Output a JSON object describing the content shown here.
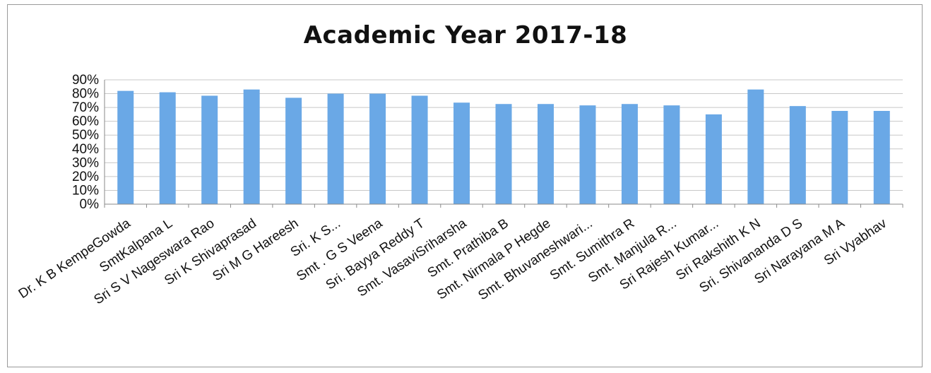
{
  "chart_data": {
    "type": "bar",
    "title": "Academic Year 2017-18",
    "xlabel": "",
    "ylabel": "",
    "ylim": [
      0,
      90
    ],
    "yticks": [
      "0%",
      "10%",
      "20%",
      "30%",
      "40%",
      "50%",
      "60%",
      "70%",
      "80%",
      "90%"
    ],
    "grid": true,
    "legend": "none",
    "bar_color": "#6aa8e6",
    "categories": [
      "Dr. K B KempeGowda",
      "SmtKalpana L",
      "Sri S V Nageswara Rao",
      "Sri K Shivaprasad",
      "Sri M G Hareesh",
      "Sri. K S...",
      "Smt . G S Veena",
      "Sri. Bayya Reddy T",
      "Smt. VasaviSriharsha",
      "Smt. Prathiba B",
      "Smt. Nirmala P Hegde",
      "Smt. Bhuvaneshwari...",
      "Smt. Sumithra R",
      "Smt. Manjula R...",
      "Sri Rajesh Kumar...",
      "Sri Rakshith K N",
      "Sri. Shivananda D S",
      "Sri Narayana  M A",
      "Sri Vyabhav"
    ],
    "values": [
      82,
      81,
      78.5,
      83,
      77,
      80,
      80,
      78.5,
      73.5,
      72.5,
      72.5,
      71.5,
      72.5,
      71.5,
      65,
      83,
      71,
      67.5,
      67.5
    ]
  }
}
